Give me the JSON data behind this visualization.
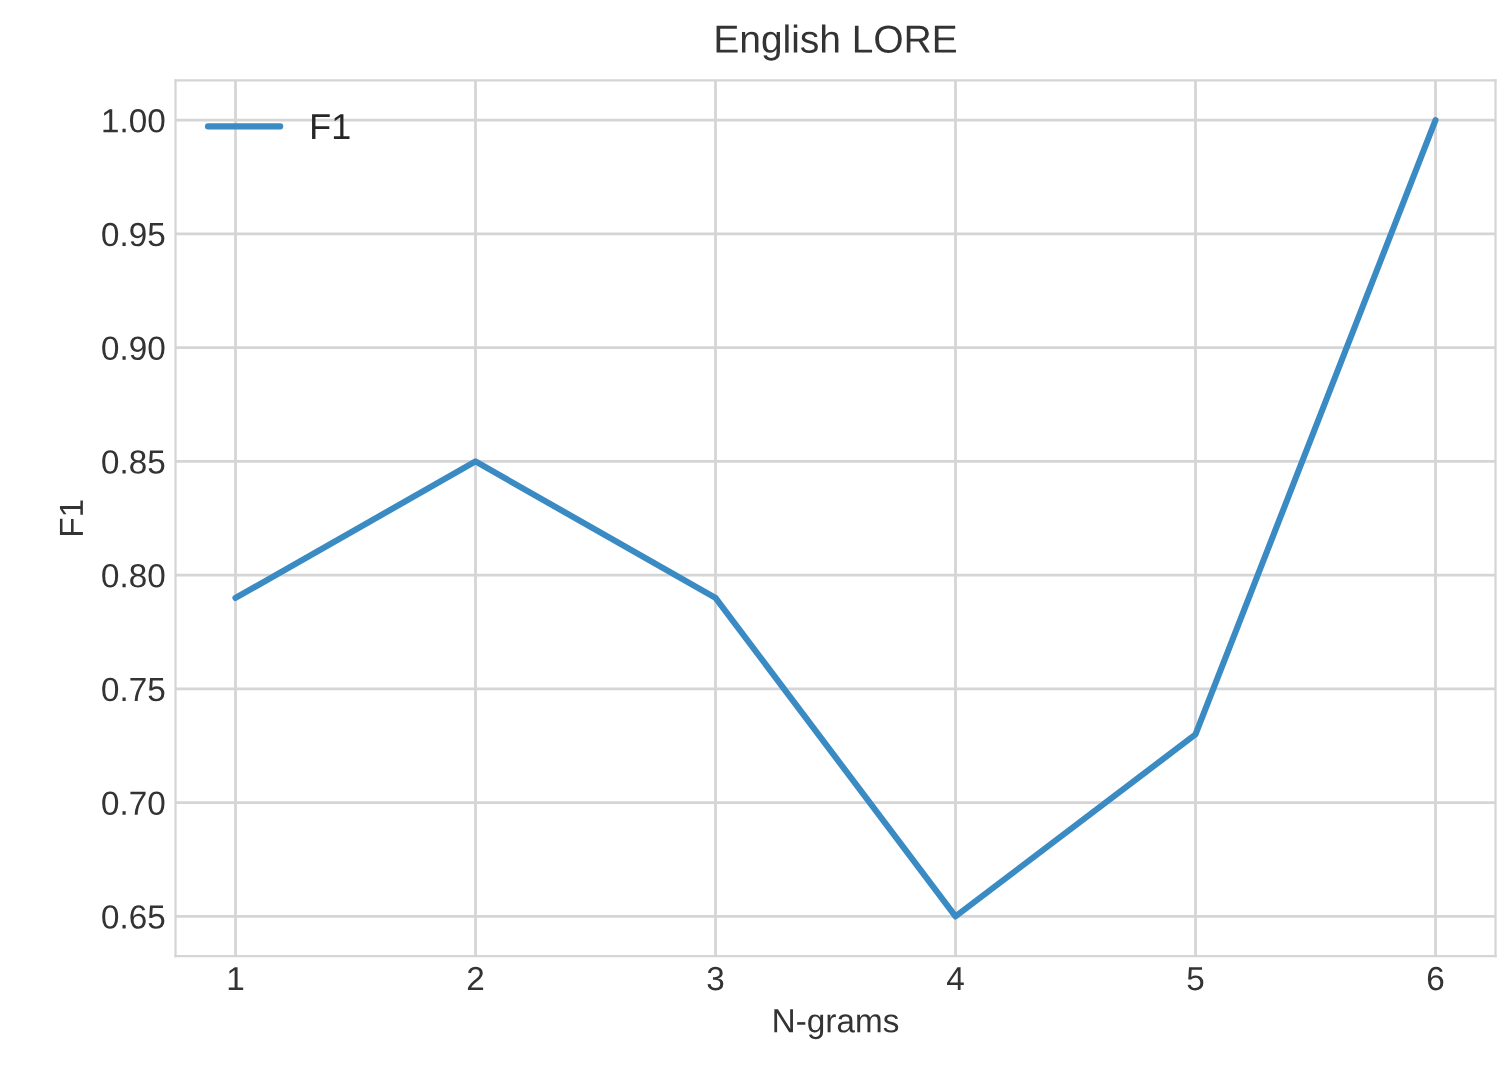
{
  "chart_data": {
    "type": "line",
    "title": "English LORE",
    "xlabel": "N-grams",
    "ylabel": "F1",
    "x": [
      1,
      2,
      3,
      4,
      5,
      6
    ],
    "series": [
      {
        "name": "F1",
        "color": "#3a8bc4",
        "values": [
          0.79,
          0.85,
          0.79,
          0.65,
          0.73,
          1.0
        ]
      }
    ],
    "xlim": [
      0.75,
      6.25
    ],
    "xticks": [
      1,
      2,
      3,
      4,
      5,
      6
    ],
    "ylim": [
      0.6325,
      1.0175
    ],
    "yticks": [
      {
        "value": 0.65,
        "label": "0.65"
      },
      {
        "value": 0.7,
        "label": "0.70"
      },
      {
        "value": 0.75,
        "label": "0.75"
      },
      {
        "value": 0.8,
        "label": "0.80"
      },
      {
        "value": 0.85,
        "label": "0.85"
      },
      {
        "value": 0.9,
        "label": "0.90"
      },
      {
        "value": 0.95,
        "label": "0.95"
      },
      {
        "value": 1.0,
        "label": "1.00"
      }
    ],
    "grid": true,
    "legend": "top left",
    "line_style": "solid",
    "marker": "none"
  }
}
